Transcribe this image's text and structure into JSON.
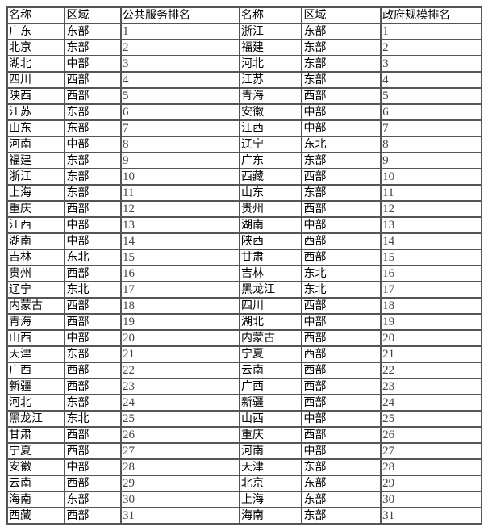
{
  "headers": [
    "名称",
    "区域",
    "公共服务排名",
    "名称",
    "区域",
    "政府规模排名"
  ],
  "rows": [
    [
      "广东",
      "东部",
      "1",
      "浙江",
      "东部",
      "1"
    ],
    [
      "北京",
      "东部",
      "2",
      "福建",
      "东部",
      "2"
    ],
    [
      "湖北",
      "中部",
      "3",
      "河北",
      "东部",
      "3"
    ],
    [
      "四川",
      "西部",
      "4",
      "江苏",
      "东部",
      "4"
    ],
    [
      "陕西",
      "西部",
      "5",
      "青海",
      "西部",
      "5"
    ],
    [
      "江苏",
      "东部",
      "6",
      "安徽",
      "中部",
      "6"
    ],
    [
      "山东",
      "东部",
      "7",
      "江西",
      "中部",
      "7"
    ],
    [
      "河南",
      "中部",
      "8",
      "辽宁",
      "东北",
      "8"
    ],
    [
      "福建",
      "东部",
      "9",
      "广东",
      "东部",
      "9"
    ],
    [
      "浙江",
      "东部",
      "10",
      "西藏",
      "西部",
      "10"
    ],
    [
      "上海",
      "东部",
      "11",
      "山东",
      "东部",
      "11"
    ],
    [
      "重庆",
      "西部",
      "12",
      "贵州",
      "西部",
      "12"
    ],
    [
      "江西",
      "中部",
      "13",
      "湖南",
      "中部",
      "13"
    ],
    [
      "湖南",
      "中部",
      "14",
      "陕西",
      "西部",
      "14"
    ],
    [
      "吉林",
      "东北",
      "15",
      "甘肃",
      "西部",
      "15"
    ],
    [
      "贵州",
      "西部",
      "16",
      "吉林",
      "东北",
      "16"
    ],
    [
      "辽宁",
      "东北",
      "17",
      "黑龙江",
      "东北",
      "17"
    ],
    [
      "内蒙古",
      "西部",
      "18",
      "四川",
      "西部",
      "18"
    ],
    [
      "青海",
      "西部",
      "19",
      "湖北",
      "中部",
      "19"
    ],
    [
      "山西",
      "中部",
      "20",
      "内蒙古",
      "西部",
      "20"
    ],
    [
      "天津",
      "东部",
      "21",
      "宁夏",
      "西部",
      "21"
    ],
    [
      "广西",
      "西部",
      "22",
      "云南",
      "西部",
      "22"
    ],
    [
      "新疆",
      "西部",
      "23",
      "广西",
      "西部",
      "23"
    ],
    [
      "河北",
      "东部",
      "24",
      "新疆",
      "西部",
      "24"
    ],
    [
      "黑龙江",
      "东北",
      "25",
      "山西",
      "中部",
      "25"
    ],
    [
      "甘肃",
      "西部",
      "26",
      "重庆",
      "西部",
      "26"
    ],
    [
      "宁夏",
      "西部",
      "27",
      "河南",
      "中部",
      "27"
    ],
    [
      "安徽",
      "中部",
      "28",
      "天津",
      "东部",
      "28"
    ],
    [
      "云南",
      "西部",
      "29",
      "北京",
      "东部",
      "29"
    ],
    [
      "海南",
      "东部",
      "30",
      "上海",
      "东部",
      "30"
    ],
    [
      "西藏",
      "西部",
      "31",
      "海南",
      "东部",
      "31"
    ]
  ]
}
